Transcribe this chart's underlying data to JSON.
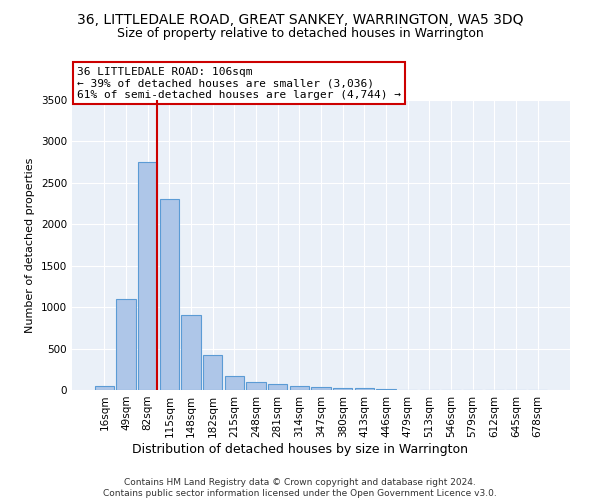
{
  "title": "36, LITTLEDALE ROAD, GREAT SANKEY, WARRINGTON, WA5 3DQ",
  "subtitle": "Size of property relative to detached houses in Warrington",
  "xlabel": "Distribution of detached houses by size in Warrington",
  "ylabel": "Number of detached properties",
  "categories": [
    "16sqm",
    "49sqm",
    "82sqm",
    "115sqm",
    "148sqm",
    "182sqm",
    "215sqm",
    "248sqm",
    "281sqm",
    "314sqm",
    "347sqm",
    "380sqm",
    "413sqm",
    "446sqm",
    "479sqm",
    "513sqm",
    "546sqm",
    "579sqm",
    "612sqm",
    "645sqm",
    "678sqm"
  ],
  "values": [
    50,
    1100,
    2750,
    2300,
    900,
    425,
    175,
    100,
    70,
    50,
    40,
    30,
    20,
    10,
    5,
    3,
    2,
    2,
    1,
    1,
    1
  ],
  "bar_color": "#aec6e8",
  "bar_edge_color": "#5b9bd5",
  "vline_x_index": 2,
  "vline_color": "#cc0000",
  "annotation_text": "36 LITTLEDALE ROAD: 106sqm\n← 39% of detached houses are smaller (3,036)\n61% of semi-detached houses are larger (4,744) →",
  "annotation_box_color": "#ffffff",
  "annotation_box_edgecolor": "#cc0000",
  "ylim": [
    0,
    3500
  ],
  "yticks": [
    0,
    500,
    1000,
    1500,
    2000,
    2500,
    3000,
    3500
  ],
  "bg_color": "#eaf0f8",
  "footer": "Contains HM Land Registry data © Crown copyright and database right 2024.\nContains public sector information licensed under the Open Government Licence v3.0.",
  "title_fontsize": 10,
  "subtitle_fontsize": 9,
  "xlabel_fontsize": 9,
  "ylabel_fontsize": 8,
  "tick_fontsize": 7.5,
  "annotation_fontsize": 8,
  "footer_fontsize": 6.5
}
